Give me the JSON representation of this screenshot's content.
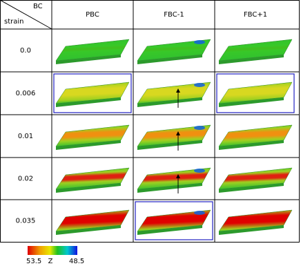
{
  "header": {
    "corner_top": "BC",
    "corner_bottom": "strain",
    "columns": [
      "PBC",
      "FBC-1",
      "FBC+1"
    ]
  },
  "rows": [
    {
      "strain": "0.0"
    },
    {
      "strain": "0.006"
    },
    {
      "strain": "0.01"
    },
    {
      "strain": "0.02"
    },
    {
      "strain": "0.035"
    }
  ],
  "colorbar": {
    "min_label": "53.5",
    "axis_label": "Z",
    "max_label": "48.5"
  }
}
